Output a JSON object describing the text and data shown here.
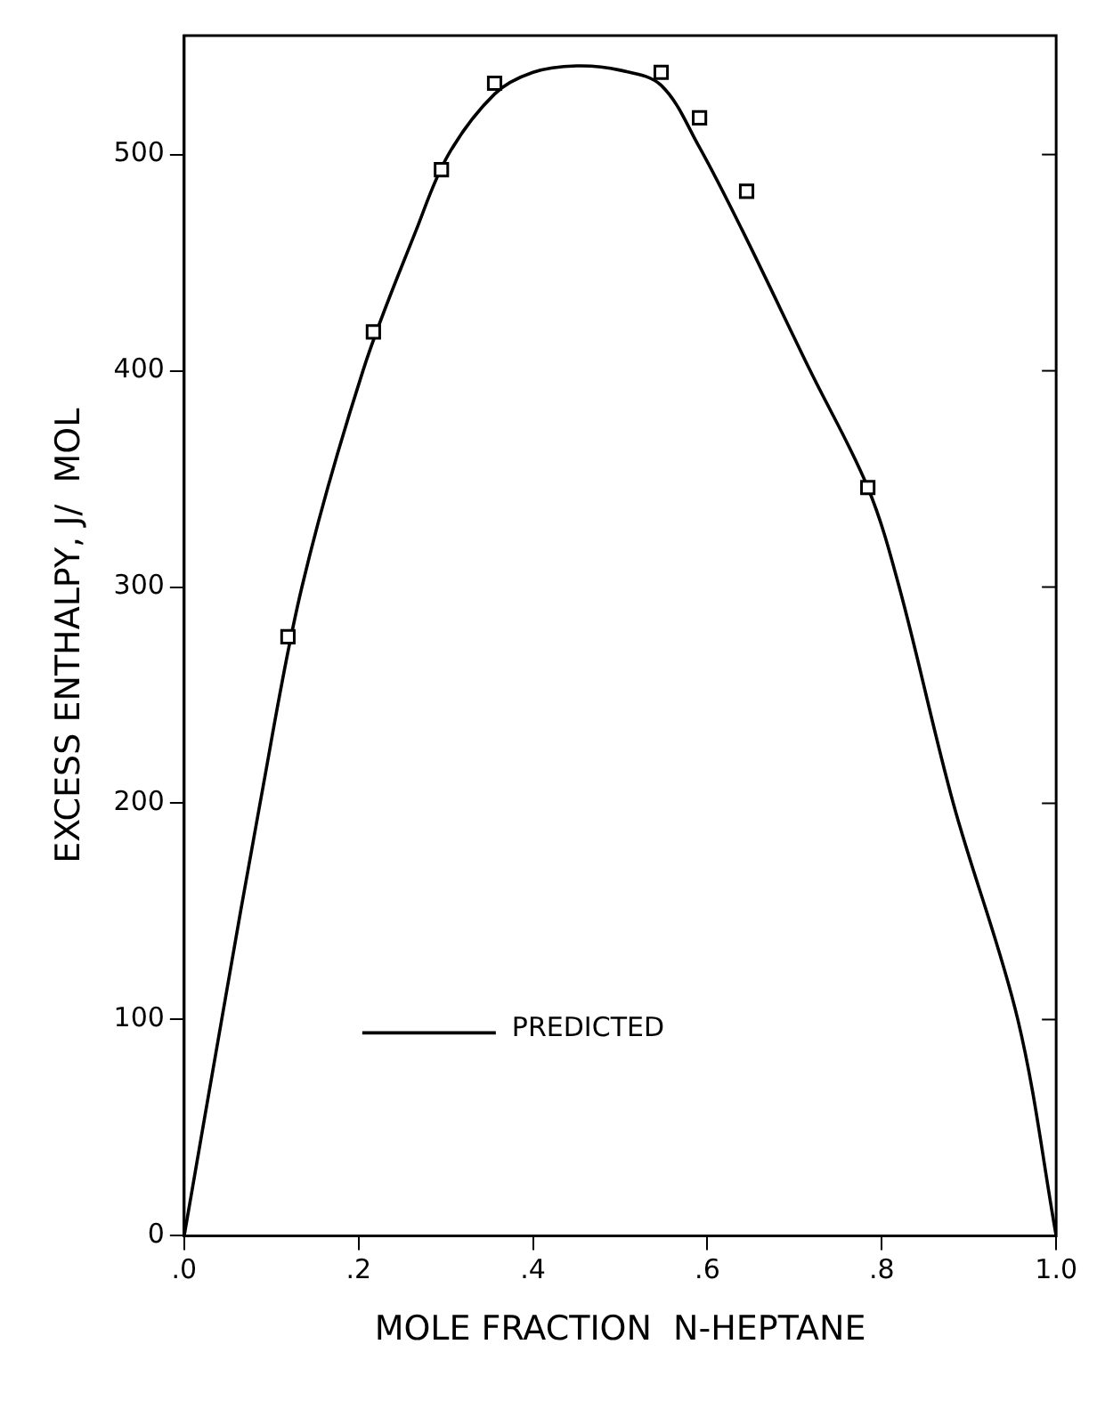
{
  "chart_data": {
    "type": "scatter",
    "xlabel": "MOLE FRACTION  N-HEPTANE",
    "ylabel": "EXCESS ENTHALPY, J/  MOL",
    "xlim": [
      0,
      1
    ],
    "ylim": [
      0,
      555
    ],
    "xticks": [
      {
        "value": 0,
        "label": ".0"
      },
      {
        "value": 0.2,
        "label": ".2"
      },
      {
        "value": 0.4,
        "label": ".4"
      },
      {
        "value": 0.6,
        "label": ".6"
      },
      {
        "value": 0.8,
        "label": ".8"
      },
      {
        "value": 1,
        "label": "1.0"
      }
    ],
    "yticks": [
      0,
      100,
      200,
      300,
      400,
      500
    ],
    "grid": false,
    "legend": "bottom left",
    "series": [
      {
        "type": "scatter",
        "color": "#000000",
        "marker": "square",
        "x": [
          0.119,
          0.217,
          0.295,
          0.356,
          0.547,
          0.591,
          0.645,
          0.784
        ],
        "values": [
          277,
          418,
          493,
          533,
          538,
          517,
          483,
          346
        ]
      },
      {
        "type": "line",
        "name": "PREDICTED",
        "color": "#000000",
        "marker": "none",
        "line_style": "solid",
        "x": [
          0,
          0.043,
          0.087,
          0.135,
          0.205,
          0.266,
          0.303,
          0.356,
          0.4,
          0.45,
          0.5,
          0.547,
          0.59,
          0.64,
          0.718,
          0.784,
          0.82,
          0.882,
          0.956,
          1
        ],
        "values": [
          0,
          100,
          200,
          300,
          400,
          465,
          500,
          528,
          538,
          541,
          539,
          532,
          504,
          465,
          400,
          346,
          300,
          200,
          100,
          0
        ]
      }
    ]
  }
}
